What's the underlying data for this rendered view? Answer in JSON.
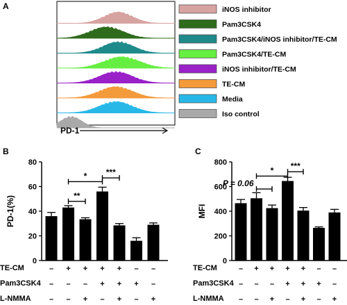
{
  "panels": {
    "a": "A",
    "b": "B",
    "c": "C"
  },
  "chart_data": [
    {
      "type": "histogram-overlay",
      "xlabel": "PD-1",
      "legend": [
        {
          "name": "iNOS inhibitor",
          "color": "#d7a3a1",
          "peak": 0.52,
          "width": 0.12
        },
        {
          "name": "Pam3CSK4",
          "color": "#2e6b1c",
          "peak": 0.42,
          "width": 0.14
        },
        {
          "name": "Pam3CSK4/iNOS inhibitor/TE-CM",
          "color": "#1f8a8a",
          "peak": 0.52,
          "width": 0.13
        },
        {
          "name": "Pam3CSK4/TE-CM",
          "color": "#66ee40",
          "peak": 0.55,
          "width": 0.15
        },
        {
          "name": "iNOS inhibitor/TE-CM",
          "color": "#9a20c8",
          "peak": 0.5,
          "width": 0.14
        },
        {
          "name": "TE-CM",
          "color": "#f39a3a",
          "peak": 0.5,
          "width": 0.14
        },
        {
          "name": "Media",
          "color": "#27b8e8",
          "peak": 0.5,
          "width": 0.14
        },
        {
          "name": "Iso control",
          "color": "#a9a9a9",
          "peak": 0.12,
          "width": 0.09
        }
      ]
    },
    {
      "type": "bar",
      "ylabel": "PD-1(%)",
      "ylim": [
        0,
        80
      ],
      "yticks": [
        0,
        20,
        40,
        60,
        80
      ],
      "values": [
        36,
        43,
        33.5,
        56,
        28.5,
        16,
        29
      ],
      "errors": [
        3,
        1.5,
        1.2,
        3.5,
        1.5,
        2.5,
        1.5
      ],
      "significance": [
        {
          "from": 1,
          "to": 2,
          "label": "**",
          "y": 48
        },
        {
          "from": 1,
          "to": 3,
          "label": "*",
          "y": 64
        },
        {
          "from": 3,
          "to": 4,
          "label": "***",
          "y": 67
        }
      ],
      "conditions": [
        {
          "name": "TE-CM",
          "signs": [
            "–",
            "+",
            "+",
            "+",
            "+",
            "–",
            "–"
          ]
        },
        {
          "name": "Pam3CSK4",
          "signs": [
            "–",
            "–",
            "–",
            "+",
            "+",
            "+",
            "–"
          ]
        },
        {
          "name": "L-NMMA",
          "signs": [
            "–",
            "–",
            "+",
            "–",
            "+",
            "–",
            "+"
          ]
        }
      ]
    },
    {
      "type": "bar",
      "ylabel": "MFI",
      "ylim": [
        0,
        800
      ],
      "yticks": [
        0,
        200,
        400,
        600,
        800
      ],
      "values": [
        465,
        505,
        425,
        645,
        405,
        265,
        390
      ],
      "errors": [
        30,
        45,
        25,
        30,
        25,
        8,
        25
      ],
      "significance": [
        {
          "from": 1,
          "to": 2,
          "label": "P = 0.06",
          "y": 580
        },
        {
          "from": 1,
          "to": 3,
          "label": "*",
          "y": 685
        },
        {
          "from": 3,
          "to": 4,
          "label": "***",
          "y": 720
        }
      ],
      "conditions": [
        {
          "name": "TE-CM",
          "signs": [
            "–",
            "+",
            "+",
            "+",
            "+",
            "–",
            "–"
          ]
        },
        {
          "name": "Pam3CSK4",
          "signs": [
            "–",
            "–",
            "–",
            "+",
            "+",
            "+",
            "–"
          ]
        },
        {
          "name": "L-NMMA",
          "signs": [
            "–",
            "–",
            "+",
            "–",
            "+",
            "–",
            "+"
          ]
        }
      ]
    }
  ]
}
